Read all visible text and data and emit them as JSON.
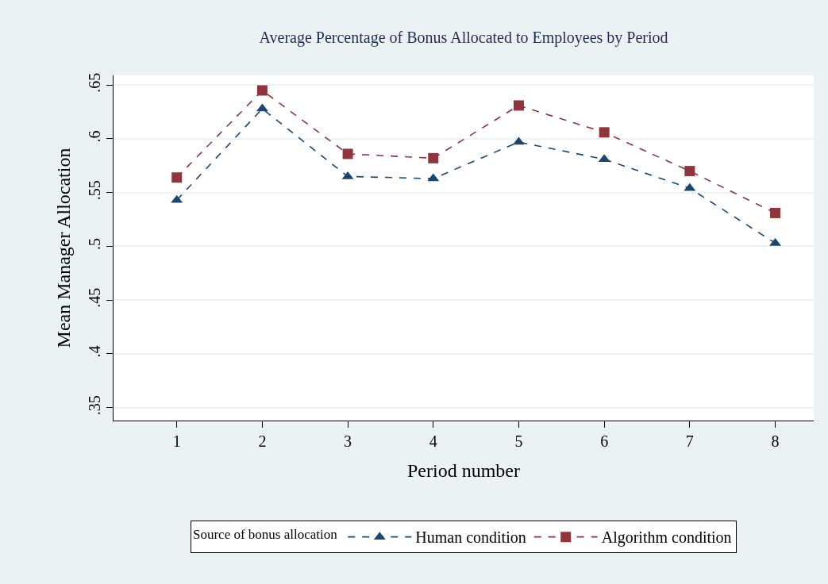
{
  "chart_data": {
    "type": "line",
    "title": "Average Percentage of Bonus Allocated to Employees by Period",
    "xlabel": "Period number",
    "ylabel": "Mean Manager Allocation",
    "legend_title": "Source of bonus allocation",
    "x": [
      1,
      2,
      3,
      4,
      5,
      6,
      7,
      8
    ],
    "series": [
      {
        "name": "Human condition",
        "color": "#1a476f",
        "marker": "triangle",
        "values": [
          0.543,
          0.628,
          0.565,
          0.563,
          0.597,
          0.581,
          0.554,
          0.503
        ]
      },
      {
        "name": "Algorithm condition",
        "color": "#90353b",
        "marker": "square",
        "values": [
          0.564,
          0.645,
          0.586,
          0.582,
          0.631,
          0.606,
          0.57,
          0.531
        ]
      }
    ],
    "xlim": [
      0.26,
      8.45
    ],
    "xticks": [
      1,
      2,
      3,
      4,
      5,
      6,
      7,
      8
    ],
    "ylim": [
      0.338,
      0.659
    ],
    "yticks": [
      {
        "value": 0.35,
        "label": ".35"
      },
      {
        "value": 0.4,
        "label": ".4"
      },
      {
        "value": 0.45,
        "label": ".45"
      },
      {
        "value": 0.5,
        "label": ".5"
      },
      {
        "value": 0.55,
        "label": ".55"
      },
      {
        "value": 0.6,
        "label": ".6"
      },
      {
        "value": 0.65,
        "label": ".65"
      }
    ],
    "grid": "y",
    "legend": "bottom",
    "line_style": "dashed"
  }
}
